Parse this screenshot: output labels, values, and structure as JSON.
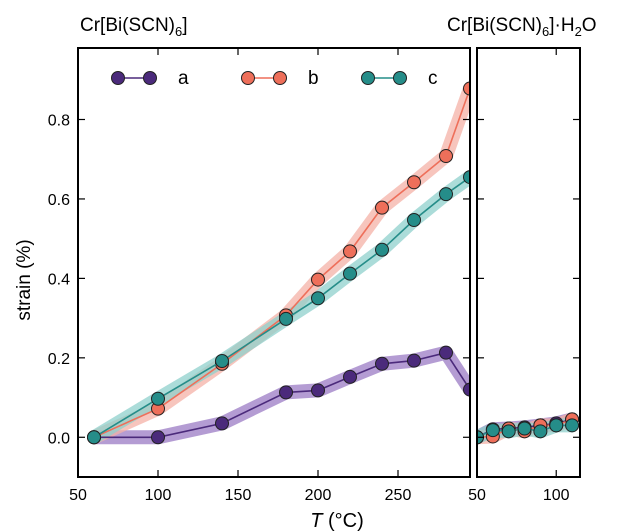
{
  "chart_data": [
    {
      "type": "line",
      "title_main": "Cr[Bi(SCN)",
      "title_sub": "6",
      "title_end": "]",
      "xlabel_italic": "T",
      "xlabel_unit": " (°C)",
      "ylabel": "strain (%)",
      "xlim": [
        50,
        295
      ],
      "ylim": [
        -0.1,
        0.98
      ],
      "xticks": [
        "50",
        "100",
        "150",
        "200",
        "250"
      ],
      "yticks": [
        "0.0",
        "0.2",
        "0.4",
        "0.6",
        "0.8"
      ],
      "legend_placement": "top",
      "colors": {
        "a": "#4b2a7b",
        "b": "#ee6f5a",
        "c": "#258d89"
      },
      "band_colors": {
        "a": "#9b7bc4",
        "b": "#f4b1a7",
        "c": "#8fd0cc"
      },
      "series": [
        {
          "name": "a",
          "x": [
            60,
            100,
            140,
            180,
            200,
            220,
            240,
            260,
            280,
            295
          ],
          "y": [
            0.0,
            0.0,
            0.035,
            0.113,
            0.118,
            0.152,
            0.185,
            0.193,
            0.213,
            0.12
          ]
        },
        {
          "name": "b",
          "x": [
            60,
            100,
            140,
            180,
            200,
            220,
            240,
            260,
            280,
            295
          ],
          "y": [
            0.0,
            0.072,
            0.185,
            0.307,
            0.397,
            0.468,
            0.578,
            0.642,
            0.708,
            0.878
          ]
        },
        {
          "name": "c",
          "x": [
            60,
            100,
            140,
            180,
            200,
            220,
            240,
            260,
            280,
            295
          ],
          "y": [
            0.0,
            0.097,
            0.192,
            0.298,
            0.35,
            0.412,
            0.472,
            0.547,
            0.612,
            0.655
          ]
        }
      ]
    },
    {
      "type": "line",
      "title_main": "Cr[Bi(SCN)",
      "title_sub": "6",
      "title_end": "]·H",
      "title_sub2": "2",
      "title_end2": "O",
      "xlim": [
        50,
        115
      ],
      "ylim": [
        -0.1,
        0.98
      ],
      "xticks": [
        "50",
        "100"
      ],
      "series": [
        {
          "name": "a",
          "x": [
            50,
            60,
            70,
            80,
            90,
            100,
            110
          ],
          "y": [
            0.0,
            0.02,
            0.022,
            0.025,
            0.03,
            0.035,
            0.045
          ]
        },
        {
          "name": "b",
          "x": [
            50,
            60,
            70,
            80,
            90,
            100,
            110
          ],
          "y": [
            0.0,
            0.002,
            0.022,
            0.015,
            0.03,
            0.03,
            0.045
          ]
        },
        {
          "name": "c",
          "x": [
            50,
            60,
            70,
            80,
            90,
            100,
            110
          ],
          "y": [
            0.0,
            0.018,
            0.015,
            0.022,
            0.015,
            0.03,
            0.03
          ]
        }
      ]
    }
  ]
}
